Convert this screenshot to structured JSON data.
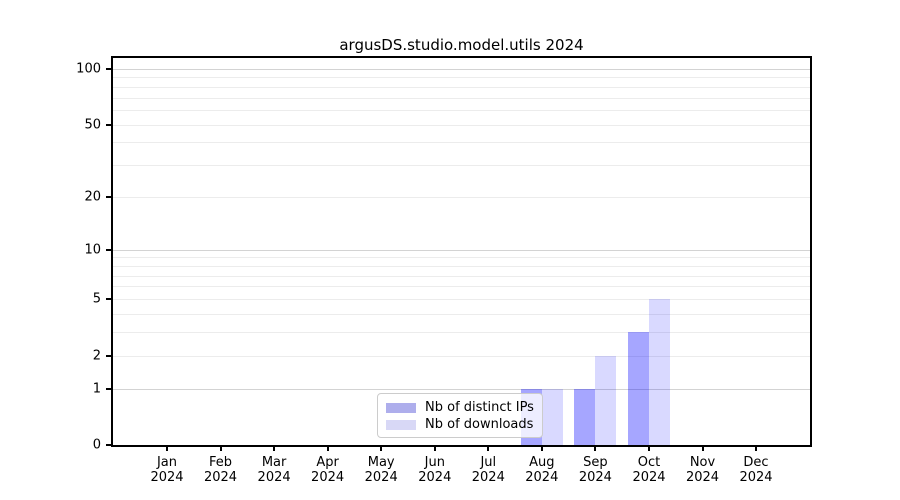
{
  "figure": {
    "title": "argusDS.studio.model.utils 2024"
  },
  "chart_data": {
    "type": "bar",
    "title": "argusDS.studio.model.utils 2024",
    "xlabel": "",
    "ylabel": "",
    "yscale": "log1p",
    "ylim": [
      0,
      115
    ],
    "categories": [
      {
        "line1": "Jan",
        "line2": "2024"
      },
      {
        "line1": "Feb",
        "line2": "2024"
      },
      {
        "line1": "Mar",
        "line2": "2024"
      },
      {
        "line1": "Apr",
        "line2": "2024"
      },
      {
        "line1": "May",
        "line2": "2024"
      },
      {
        "line1": "Jun",
        "line2": "2024"
      },
      {
        "line1": "Jul",
        "line2": "2024"
      },
      {
        "line1": "Aug",
        "line2": "2024"
      },
      {
        "line1": "Sep",
        "line2": "2024"
      },
      {
        "line1": "Oct",
        "line2": "2024"
      },
      {
        "line1": "Nov",
        "line2": "2024"
      },
      {
        "line1": "Dec",
        "line2": "2024"
      }
    ],
    "series": [
      {
        "name": "Nb of distinct IPs",
        "color": "rgba(0,0,255,0.35)",
        "swatch_color": "#aeaeec",
        "values": [
          0,
          0,
          0,
          0,
          0,
          0,
          0,
          1,
          1,
          3,
          0,
          0
        ]
      },
      {
        "name": "Nb of downloads",
        "color": "rgba(0,0,255,0.15)",
        "swatch_color": "#d8d8f6",
        "values": [
          0,
          0,
          0,
          0,
          0,
          0,
          0,
          1,
          2,
          5,
          0,
          0
        ]
      }
    ],
    "ytick_values": [
      0,
      1,
      2,
      5,
      10,
      20,
      50,
      100
    ],
    "grid_major_values": [
      1,
      10,
      100
    ],
    "grid_minor_values": [
      2,
      3,
      4,
      5,
      6,
      7,
      8,
      9,
      20,
      30,
      40,
      50,
      60,
      70,
      80,
      90
    ],
    "grid_major_color": "#d3d3d3",
    "grid_minor_color": "#ececec",
    "legend_position": "lower center",
    "grid": "horizontal"
  }
}
